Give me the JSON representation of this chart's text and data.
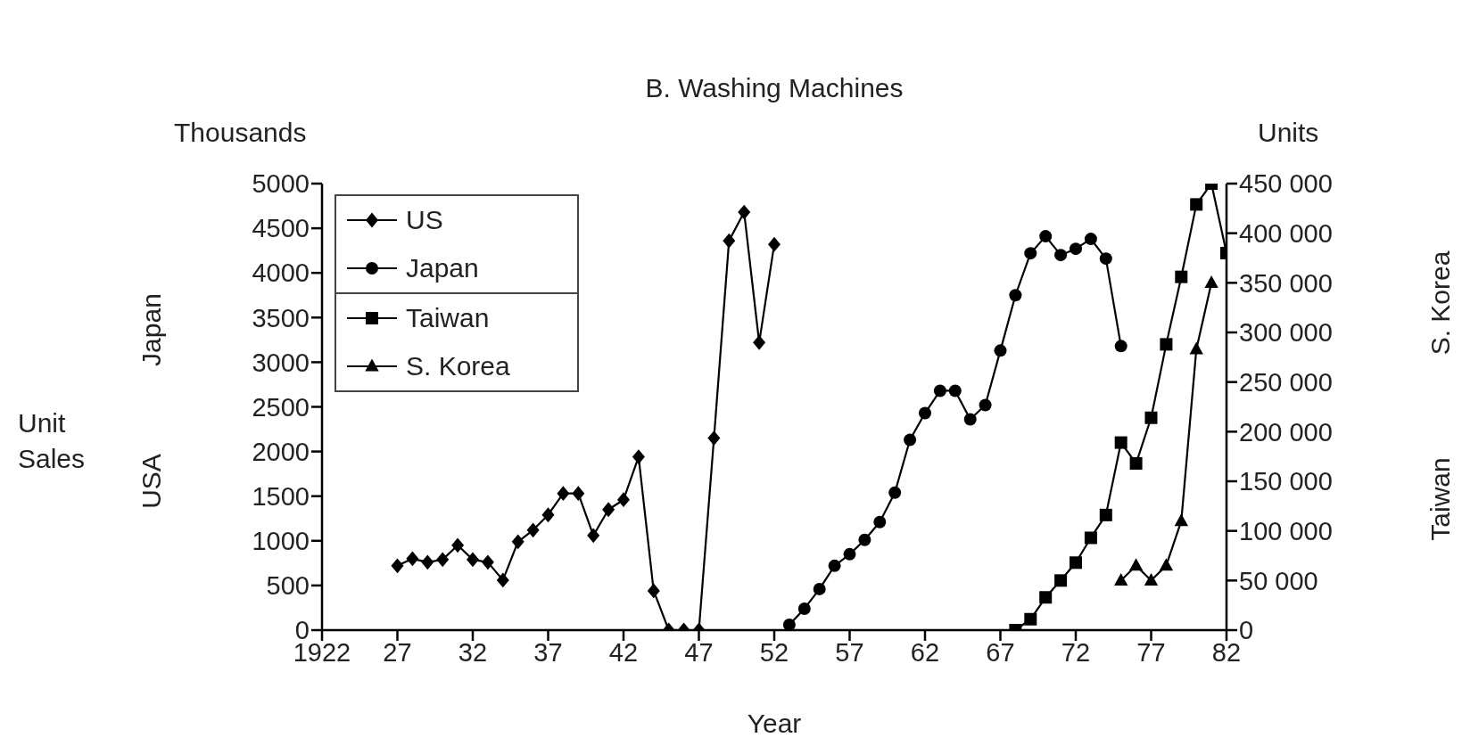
{
  "chart_data": {
    "type": "line",
    "title": "B. Washing Machines",
    "xlabel": "Year",
    "annotations": [
      "Thousands",
      "USA",
      "Japan",
      "Units",
      "Taiwan",
      "S. Korea",
      "Unit Sales"
    ],
    "xlim": [
      1922,
      1982
    ],
    "xticks": [
      1922,
      {
        "value": 1927,
        "label": "27"
      },
      {
        "value": 1932,
        "label": "32"
      },
      {
        "value": 1937,
        "label": "37"
      },
      {
        "value": 1942,
        "label": "42"
      },
      {
        "value": 1947,
        "label": "47"
      },
      {
        "value": 1952,
        "label": "52"
      },
      {
        "value": 1957,
        "label": "57"
      },
      {
        "value": 1962,
        "label": "62"
      },
      {
        "value": 1967,
        "label": "67"
      },
      {
        "value": 1972,
        "label": "72"
      },
      {
        "value": 1977,
        "label": "77"
      },
      {
        "value": 1982,
        "label": "82"
      }
    ],
    "ylim": [
      0,
      5000
    ],
    "yticks": [
      0,
      500,
      1000,
      1500,
      2000,
      2500,
      3000,
      3500,
      4000,
      4500,
      5000
    ],
    "y2lim": [
      0,
      450000
    ],
    "y2ticks": [
      0,
      {
        "value": 50000,
        "label": "50 000"
      },
      {
        "value": 100000,
        "label": "100 000"
      },
      {
        "value": 150000,
        "label": "150 000"
      },
      {
        "value": 200000,
        "label": "200 000"
      },
      {
        "value": 250000,
        "label": "250 000"
      },
      {
        "value": 300000,
        "label": "300 000"
      },
      {
        "value": 350000,
        "label": "350 000"
      },
      {
        "value": 400000,
        "label": "400 000"
      },
      {
        "value": 450000,
        "label": "450 000"
      }
    ],
    "grid": false,
    "legend": "top left",
    "series": [
      {
        "name": "US",
        "color": "#000000",
        "marker": "diamond",
        "x": [
          1927,
          1928,
          1929,
          1930,
          1931,
          1932,
          1933,
          1934,
          1935,
          1936,
          1937,
          1938,
          1939,
          1940,
          1941,
          1942,
          1943,
          1944,
          1945,
          1946,
          1947,
          1948,
          1949,
          1950,
          1951,
          1952
        ],
        "values": [
          720,
          800,
          760,
          790,
          950,
          790,
          760,
          560,
          990,
          1120,
          1290,
          1530,
          1530,
          1060,
          1350,
          1460,
          1940,
          440,
          0,
          0,
          0,
          2150,
          4360,
          4680,
          3220,
          4320
        ]
      },
      {
        "name": "Japan",
        "color": "#000000",
        "marker": "circle",
        "x": [
          1953,
          1954,
          1955,
          1956,
          1957,
          1958,
          1959,
          1960,
          1961,
          1962,
          1963,
          1964,
          1965,
          1966,
          1967,
          1968,
          1969,
          1970,
          1971,
          1972,
          1973,
          1974,
          1975
        ],
        "values": [
          60,
          240,
          460,
          720,
          850,
          1010,
          1210,
          1540,
          2130,
          2430,
          2680,
          2680,
          2360,
          2520,
          3130,
          3750,
          4220,
          4410,
          4200,
          4270,
          4380,
          4160,
          3180
        ]
      },
      {
        "name": "Taiwan",
        "color": "#000000",
        "marker": "square",
        "axis": "y2",
        "x": [
          1968,
          1969,
          1970,
          1971,
          1972,
          1973,
          1974,
          1975,
          1976,
          1977,
          1978,
          1979,
          1980,
          1981,
          1982
        ],
        "values": [
          0,
          11000,
          33000,
          50000,
          68000,
          93000,
          116000,
          189000,
          168000,
          214000,
          288000,
          356000,
          429000,
          450000,
          380000
        ]
      },
      {
        "name": "S. Korea",
        "color": "#000000",
        "marker": "triangle",
        "axis": "y2",
        "x": [
          1975,
          1976,
          1977,
          1978,
          1979,
          1980,
          1981
        ],
        "values": [
          50000,
          65000,
          50000,
          65000,
          110000,
          283000,
          350000
        ]
      }
    ]
  }
}
